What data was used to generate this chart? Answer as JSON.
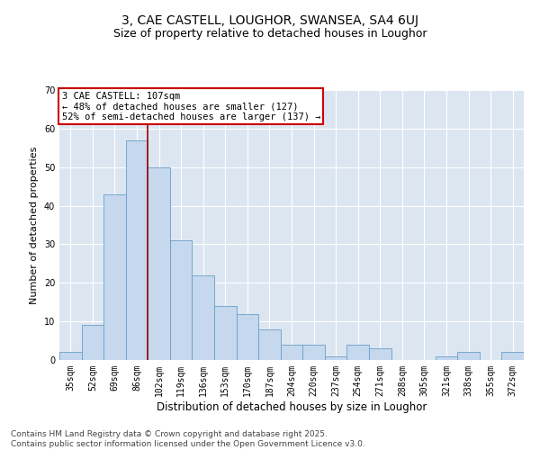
{
  "title1": "3, CAE CASTELL, LOUGHOR, SWANSEA, SA4 6UJ",
  "title2": "Size of property relative to detached houses in Loughor",
  "xlabel": "Distribution of detached houses by size in Loughor",
  "ylabel": "Number of detached properties",
  "categories": [
    "35sqm",
    "52sqm",
    "69sqm",
    "86sqm",
    "102sqm",
    "119sqm",
    "136sqm",
    "153sqm",
    "170sqm",
    "187sqm",
    "204sqm",
    "220sqm",
    "237sqm",
    "254sqm",
    "271sqm",
    "288sqm",
    "305sqm",
    "321sqm",
    "338sqm",
    "355sqm",
    "372sqm"
  ],
  "values": [
    2,
    9,
    43,
    57,
    50,
    31,
    22,
    14,
    12,
    8,
    4,
    4,
    1,
    4,
    3,
    0,
    0,
    1,
    2,
    0,
    2
  ],
  "bar_color": "#c5d8ee",
  "bar_edge_color": "#6a9ec7",
  "bg_color": "#dce6f1",
  "grid_color": "#ffffff",
  "vline_color": "#990000",
  "annotation_text": "3 CAE CASTELL: 107sqm\n← 48% of detached houses are smaller (127)\n52% of semi-detached houses are larger (137) →",
  "annotation_box_edgecolor": "#cc0000",
  "ylim": [
    0,
    70
  ],
  "yticks": [
    0,
    10,
    20,
    30,
    40,
    50,
    60,
    70
  ],
  "footnote": "Contains HM Land Registry data © Crown copyright and database right 2025.\nContains public sector information licensed under the Open Government Licence v3.0.",
  "title1_fontsize": 10,
  "title2_fontsize": 9,
  "xlabel_fontsize": 8.5,
  "ylabel_fontsize": 8,
  "tick_fontsize": 7,
  "annot_fontsize": 7.5,
  "footnote_fontsize": 6.5
}
